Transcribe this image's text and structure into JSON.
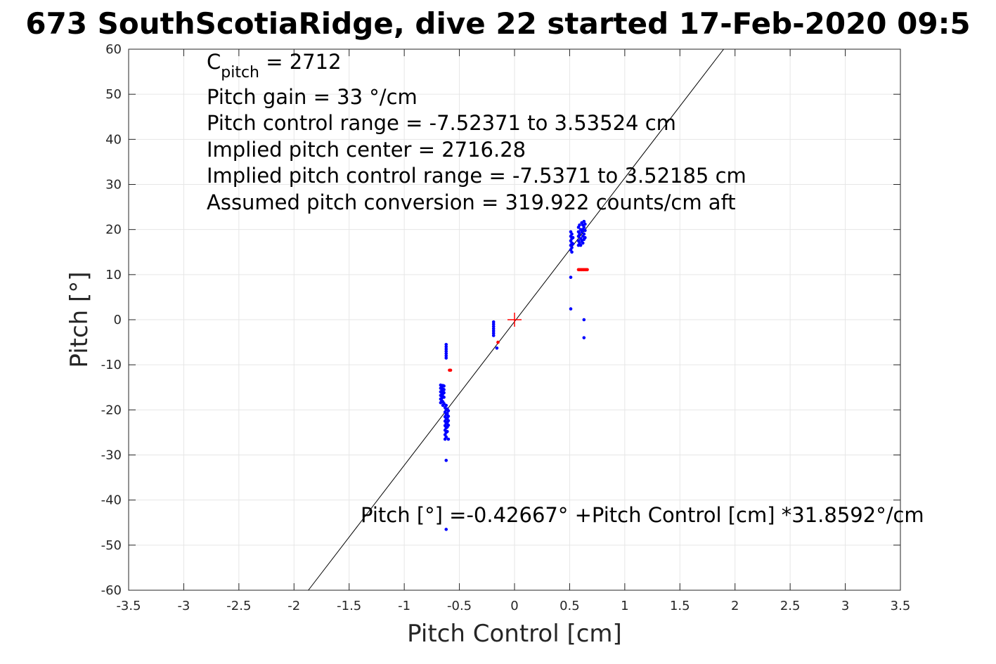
{
  "chart_data": {
    "type": "scatter",
    "title": "673 SouthScotiaRidge, dive 22 started 17-Feb-2020 09:5",
    "xlabel": "Pitch Control [cm]",
    "ylabel": "Pitch [°]",
    "xlim": [
      -3.5,
      3.5
    ],
    "ylim": [
      -60,
      60
    ],
    "xticks": [
      -3.5,
      -3,
      -2.5,
      -2,
      -1.5,
      -1,
      -0.5,
      0,
      0.5,
      1,
      1.5,
      2,
      2.5,
      3,
      3.5
    ],
    "xtick_labels": [
      "-3.5",
      "-3",
      "-2.5",
      "-2",
      "-1.5",
      "-1",
      "-0.5",
      "0",
      "0.5",
      "1",
      "1.5",
      "2",
      "2.5",
      "3",
      "3.5"
    ],
    "yticks": [
      -60,
      -50,
      -40,
      -30,
      -20,
      -10,
      0,
      10,
      20,
      30,
      40,
      50,
      60
    ],
    "ytick_labels": [
      "-60",
      "-50",
      "-40",
      "-30",
      "-20",
      "-10",
      "0",
      "10",
      "20",
      "30",
      "40",
      "50",
      "60"
    ],
    "grid": true,
    "fit_line": {
      "intercept": -0.42667,
      "slope": 31.8592
    },
    "center_marker": {
      "x": 0,
      "y": 0,
      "color": "#ff0000",
      "shape": "plus"
    },
    "annotations": {
      "cpitch_main": "C",
      "cpitch_sub": "pitch",
      "cpitch_value": " = 2712",
      "line2": "Pitch gain = 33 °/cm",
      "line3": "Pitch control range = -7.52371 to 3.53524 cm",
      "line4": "Implied pitch center = 2716.28",
      "line5": "Implied pitch control range = -7.5371 to 3.52185 cm",
      "line6": "Assumed pitch conversion = 319.922 counts/cm aft",
      "fit_equation": "Pitch [°] =-0.42667° +Pitch Control [cm] *31.8592°/cm"
    },
    "series": [
      {
        "color": "#0000ff",
        "points": [
          [
            -0.67,
            -14.5
          ],
          [
            -0.67,
            -15.2
          ],
          [
            -0.67,
            -16.0
          ],
          [
            -0.67,
            -16.8
          ],
          [
            -0.67,
            -17.6
          ],
          [
            -0.67,
            -18.4
          ],
          [
            -0.66,
            -14.8
          ],
          [
            -0.66,
            -15.8
          ],
          [
            -0.66,
            -16.6
          ],
          [
            -0.66,
            -17.4
          ],
          [
            -0.66,
            -18.0
          ],
          [
            -0.65,
            -14.6
          ],
          [
            -0.65,
            -15.4
          ],
          [
            -0.65,
            -16.4
          ],
          [
            -0.65,
            -17.0
          ],
          [
            -0.65,
            -18.2
          ],
          [
            -0.65,
            -19.0
          ],
          [
            -0.64,
            -14.7
          ],
          [
            -0.64,
            -15.5
          ],
          [
            -0.64,
            -16.2
          ],
          [
            -0.64,
            -17.2
          ],
          [
            -0.64,
            -18.6
          ],
          [
            -0.63,
            -19.5
          ],
          [
            -0.63,
            -20.5
          ],
          [
            -0.63,
            -21.5
          ],
          [
            -0.63,
            -22.5
          ],
          [
            -0.63,
            -23.5
          ],
          [
            -0.63,
            -24.5
          ],
          [
            -0.63,
            -25.5
          ],
          [
            -0.63,
            -26.5
          ],
          [
            -0.62,
            -19.0
          ],
          [
            -0.62,
            -20.0
          ],
          [
            -0.62,
            -21.0
          ],
          [
            -0.62,
            -22.0
          ],
          [
            -0.62,
            -23.0
          ],
          [
            -0.62,
            -24.0
          ],
          [
            -0.62,
            -25.0
          ],
          [
            -0.62,
            -26.0
          ],
          [
            -0.61,
            -19.8
          ],
          [
            -0.61,
            -20.8
          ],
          [
            -0.61,
            -21.8
          ],
          [
            -0.61,
            -22.8
          ],
          [
            -0.61,
            -23.8
          ],
          [
            -0.61,
            -24.8
          ],
          [
            -0.6,
            -20.2
          ],
          [
            -0.6,
            -21.4
          ],
          [
            -0.6,
            -22.4
          ],
          [
            -0.6,
            -23.4
          ],
          [
            -0.6,
            -26.5
          ],
          [
            -0.62,
            -5.5
          ],
          [
            -0.62,
            -6.0
          ],
          [
            -0.62,
            -6.5
          ],
          [
            -0.62,
            -7.0
          ],
          [
            -0.62,
            -7.5
          ],
          [
            -0.62,
            -8.0
          ],
          [
            -0.62,
            -8.5
          ],
          [
            -0.62,
            -31.2
          ],
          [
            -0.62,
            -46.5
          ],
          [
            -0.19,
            -0.5
          ],
          [
            -0.19,
            -1.0
          ],
          [
            -0.19,
            -1.5
          ],
          [
            -0.19,
            -2.0
          ],
          [
            -0.19,
            -2.5
          ],
          [
            -0.19,
            -3.0
          ],
          [
            -0.19,
            -3.5
          ],
          [
            -0.16,
            -6.3
          ],
          [
            0.51,
            19.5
          ],
          [
            0.51,
            18.5
          ],
          [
            0.51,
            17.5
          ],
          [
            0.51,
            16.5
          ],
          [
            0.51,
            15.5
          ],
          [
            0.52,
            19.0
          ],
          [
            0.52,
            18.0
          ],
          [
            0.52,
            17.0
          ],
          [
            0.52,
            16.0
          ],
          [
            0.52,
            15.0
          ],
          [
            0.53,
            18.2
          ],
          [
            0.53,
            16.8
          ],
          [
            0.58,
            20.5
          ],
          [
            0.58,
            19.5
          ],
          [
            0.58,
            18.5
          ],
          [
            0.58,
            17.5
          ],
          [
            0.58,
            16.5
          ],
          [
            0.59,
            21.0
          ],
          [
            0.59,
            19.0
          ],
          [
            0.59,
            17.0
          ],
          [
            0.6,
            20.0
          ],
          [
            0.6,
            18.0
          ],
          [
            0.6,
            16.5
          ],
          [
            0.61,
            21.5
          ],
          [
            0.61,
            19.5
          ],
          [
            0.61,
            17.5
          ],
          [
            0.62,
            21.0
          ],
          [
            0.62,
            20.0
          ],
          [
            0.62,
            18.5
          ],
          [
            0.62,
            17.0
          ],
          [
            0.63,
            21.8
          ],
          [
            0.63,
            20.5
          ],
          [
            0.63,
            19.0
          ],
          [
            0.63,
            17.8
          ],
          [
            0.64,
            21.2
          ],
          [
            0.64,
            19.8
          ],
          [
            0.64,
            18.2
          ],
          [
            0.51,
            9.4
          ],
          [
            0.51,
            2.4
          ],
          [
            0.63,
            0.0
          ],
          [
            0.63,
            -4.0
          ]
        ]
      },
      {
        "color": "#ff0000",
        "points": [
          [
            0.58,
            11.1
          ],
          [
            0.59,
            11.1
          ],
          [
            0.6,
            11.1
          ],
          [
            0.61,
            11.1
          ],
          [
            0.62,
            11.1
          ],
          [
            0.63,
            11.1
          ],
          [
            0.64,
            11.1
          ],
          [
            0.65,
            11.1
          ],
          [
            0.66,
            11.1
          ],
          [
            -0.58,
            -11.2
          ],
          [
            -0.59,
            -11.2
          ],
          [
            -0.15,
            -5.0
          ]
        ]
      }
    ]
  }
}
